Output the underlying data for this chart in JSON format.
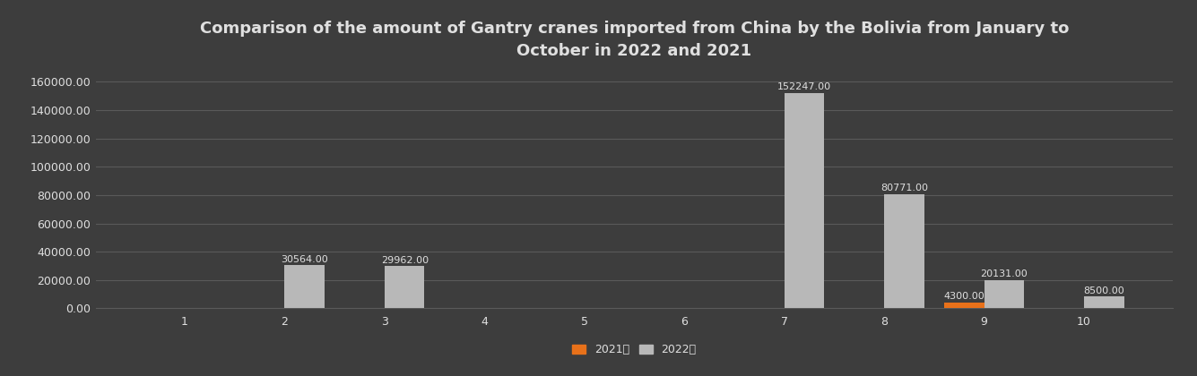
{
  "title": "Comparison of the amount of Gantry cranes imported from China by the Bolivia from January to\nOctober in 2022 and 2021",
  "months": [
    1,
    2,
    3,
    4,
    5,
    6,
    7,
    8,
    9,
    10
  ],
  "values_2021": [
    0,
    0,
    0,
    0,
    0,
    0,
    0,
    0,
    4300,
    0
  ],
  "values_2022": [
    0,
    30564,
    29962,
    0,
    0,
    0,
    152247,
    80771,
    20131,
    8500
  ],
  "labels_2021": [
    null,
    null,
    null,
    null,
    null,
    null,
    null,
    null,
    "4300.00",
    null
  ],
  "labels_2022": [
    null,
    "30564.00",
    "29962.00",
    null,
    null,
    null,
    "152247.00",
    "80771.00",
    "20131.00",
    "8500.00"
  ],
  "color_2021": "#e8711a",
  "color_2022": "#b8b8b8",
  "background_color": "#3d3d3d",
  "plot_bg_color": "#3d3d3d",
  "text_color": "#e0e0e0",
  "grid_color": "#5a5a5a",
  "ylim": [
    0,
    170000
  ],
  "yticks": [
    0,
    20000,
    40000,
    60000,
    80000,
    100000,
    120000,
    140000,
    160000
  ],
  "legend_2021": "2021年",
  "legend_2022": "2022年",
  "bar_width": 0.4,
  "title_fontsize": 13,
  "tick_fontsize": 9,
  "label_fontsize": 8
}
